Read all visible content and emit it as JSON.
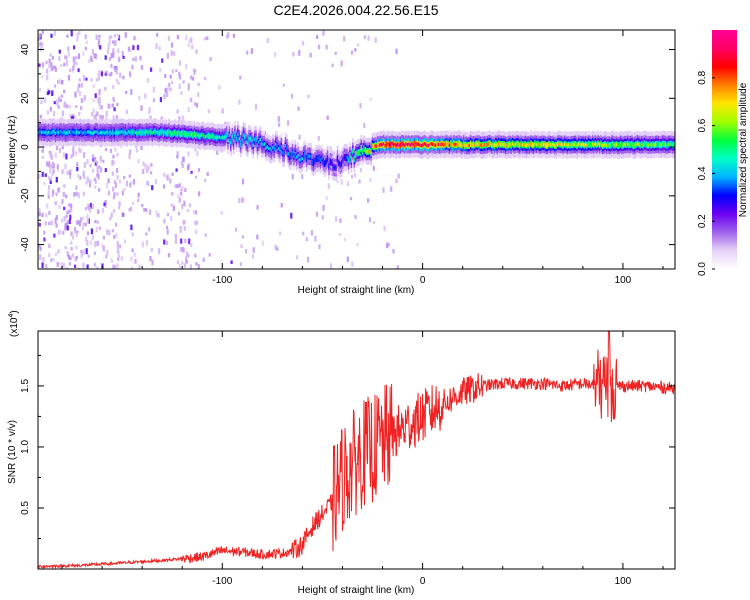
{
  "title": "C2E4.2026.004.22.56.E15",
  "chart_data": [
    {
      "type": "heatmap",
      "name": "spectrogram",
      "xlabel": "Height of straight line (km)",
      "ylabel": "Frequency (Hz)",
      "xlim": [
        -192,
        126
      ],
      "ylim": [
        -50,
        48
      ],
      "xticks": [
        -100,
        0,
        100
      ],
      "xtick_labels": [
        "-100",
        "0",
        "100"
      ],
      "yticks": [
        40,
        20,
        0,
        -20,
        -40
      ],
      "ytick_labels": [
        "40",
        "20",
        "0",
        "-20",
        "-40"
      ],
      "colorbar": {
        "label": "Normalized spectral amplitude",
        "range": [
          0,
          1
        ],
        "ticks": [
          0.0,
          0.2,
          0.4,
          0.6,
          0.8
        ],
        "tick_labels": [
          "0.0",
          "0.2",
          "0.4",
          "0.6",
          "0.8"
        ],
        "colors": [
          "#ffffff",
          "#e6d2f7",
          "#a062ec",
          "#6a00f0",
          "#0000ff",
          "#00b4ff",
          "#00ffc8",
          "#00ff3c",
          "#a0ff00",
          "#ffe600",
          "#ff8000",
          "#ff0000",
          "#ff0064",
          "#ff0096"
        ]
      },
      "ridge": {
        "x": [
          -192,
          -170,
          -150,
          -130,
          -115,
          -100,
          -90,
          -80,
          -70,
          -60,
          -50,
          -45,
          -40,
          -35,
          -30,
          -25,
          -20,
          -10,
          0,
          10,
          20,
          40,
          60,
          80,
          100,
          126
        ],
        "frequency": [
          6,
          6,
          6,
          6,
          5,
          4,
          3,
          1,
          -1,
          -4,
          -6,
          -7,
          -5,
          -3,
          -1,
          0,
          1,
          1,
          1,
          1,
          1,
          1,
          1,
          1,
          1,
          1
        ],
        "amplitude": [
          0.4,
          0.42,
          0.44,
          0.5,
          0.55,
          0.45,
          0.45,
          0.42,
          0.38,
          0.4,
          0.35,
          0.3,
          0.3,
          0.55,
          0.6,
          0.75,
          0.95,
          0.95,
          0.9,
          0.85,
          0.75,
          0.7,
          0.7,
          0.65,
          0.6,
          0.55
        ]
      }
    },
    {
      "type": "line",
      "name": "snr",
      "xlabel": "Height of straight line (km)",
      "ylabel": "SNR (10 * v/v)",
      "multiplier": "(x10^4)",
      "multiplier_base": "(x10",
      "multiplier_exp": "4",
      "xlim": [
        -192,
        126
      ],
      "ylim": [
        0,
        1.95
      ],
      "xticks": [
        -100,
        0,
        100
      ],
      "xtick_labels": [
        "-100",
        "0",
        "100"
      ],
      "yticks": [
        0.5,
        1.0,
        1.5
      ],
      "ytick_labels": [
        "0.5",
        "1.0",
        "1.5"
      ],
      "color": "#ee2222",
      "x": [
        -192,
        -170,
        -150,
        -130,
        -110,
        -100,
        -90,
        -80,
        -70,
        -65,
        -60,
        -55,
        -50,
        -45,
        -40,
        -35,
        -30,
        -25,
        -20,
        -15,
        -10,
        -5,
        0,
        10,
        20,
        30,
        40,
        50,
        60,
        70,
        80,
        90,
        93,
        100,
        110,
        126
      ],
      "y": [
        0.02,
        0.03,
        0.05,
        0.07,
        0.1,
        0.15,
        0.14,
        0.12,
        0.13,
        0.15,
        0.2,
        0.35,
        0.45,
        0.55,
        0.75,
        0.85,
        0.95,
        0.98,
        1.05,
        1.1,
        1.15,
        1.2,
        1.25,
        1.35,
        1.45,
        1.5,
        1.52,
        1.52,
        1.52,
        1.5,
        1.52,
        1.5,
        1.5,
        1.5,
        1.5,
        1.48
      ]
    }
  ]
}
